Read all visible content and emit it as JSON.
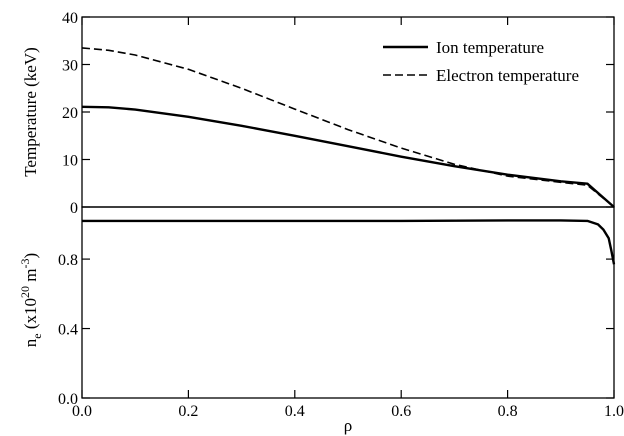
{
  "chart_data": [
    {
      "type": "line",
      "ylabel": "Temperature (keV)",
      "xlim": [
        0,
        1
      ],
      "ylim": [
        0,
        40
      ],
      "yticks": [
        "0",
        "10",
        "20",
        "30",
        "40"
      ],
      "legend": {
        "position": "top-right"
      },
      "series": [
        {
          "name": "Ion temperature",
          "style": "solid",
          "color": "#000000",
          "x": [
            0.0,
            0.05,
            0.1,
            0.2,
            0.3,
            0.4,
            0.5,
            0.6,
            0.7,
            0.8,
            0.9,
            0.95,
            1.0
          ],
          "y": [
            21.1,
            21.0,
            20.5,
            19.0,
            17.1,
            15.0,
            12.8,
            10.6,
            8.6,
            6.8,
            5.4,
            4.9,
            0.0
          ]
        },
        {
          "name": "Electron temperature",
          "style": "dashed",
          "color": "#000000",
          "x": [
            0.0,
            0.05,
            0.1,
            0.2,
            0.3,
            0.4,
            0.5,
            0.6,
            0.7,
            0.8,
            0.9,
            0.95,
            1.0
          ],
          "y": [
            33.5,
            33.0,
            32.0,
            29.0,
            25.0,
            20.6,
            16.3,
            12.4,
            9.0,
            6.5,
            5.2,
            4.6,
            0.0
          ]
        }
      ]
    },
    {
      "type": "line",
      "xlabel": "ρ",
      "ylabel_main": "n",
      "ylabel_sub": "e",
      "ylabel_open": " (x10",
      "ylabel_exp1": "20",
      "ylabel_mid": " m",
      "ylabel_exp2": "-3",
      "ylabel_close": ")",
      "xlim": [
        0,
        1
      ],
      "ylim": [
        0,
        1.1
      ],
      "xticks": [
        "0.0",
        "0.2",
        "0.4",
        "0.6",
        "0.8",
        "1.0"
      ],
      "yticks": [
        "0.0",
        "0.4",
        "0.8"
      ],
      "series": [
        {
          "style": "solid",
          "color": "#000000",
          "x": [
            0.0,
            0.2,
            0.4,
            0.6,
            0.8,
            0.9,
            0.95,
            0.97,
            0.98,
            0.99,
            0.995,
            1.0
          ],
          "y": [
            1.02,
            1.02,
            1.02,
            1.02,
            1.023,
            1.023,
            1.02,
            1.0,
            0.97,
            0.92,
            0.85,
            0.77
          ]
        }
      ]
    }
  ]
}
